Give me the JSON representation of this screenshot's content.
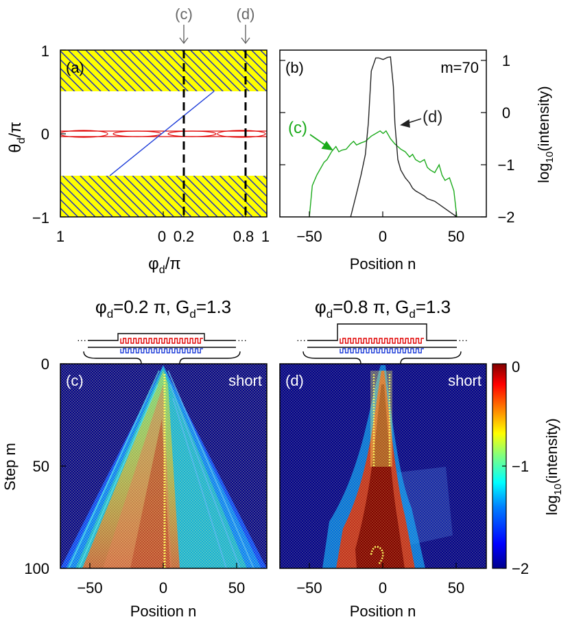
{
  "colors": {
    "yellow": "#ffff00",
    "hatch": "#2030c0",
    "red": "#e00000",
    "blue": "#1a3ad8",
    "green": "#1aaa1a",
    "dark": "#222222",
    "gray_text": "#666666",
    "navy": "#00008c"
  },
  "panel_a": {
    "label": "(a)",
    "ylabel": "θ",
    "ylabel_sub": "d",
    "ylabel_tail": "/π",
    "xlabel": "φ",
    "xlabel_sub": "d",
    "xlabel_tail": "/π",
    "yticks": [
      "1",
      "0",
      "−1"
    ],
    "xticks": [
      "1",
      "0",
      "0.2",
      "0.8",
      "1"
    ],
    "markers": [
      "(c)",
      "(d)"
    ],
    "marker_x": [
      0.2,
      0.8
    ]
  },
  "panel_b": {
    "label": "(b)",
    "step_label": "m=70",
    "xlabel": "Position n",
    "ylabel": "log",
    "ylabel_sub": "10",
    "ylabel_tail": "(intensity)",
    "xticks": [
      "−50",
      "0",
      "50"
    ],
    "yticks": [
      "1",
      "0",
      "−1",
      "−2"
    ],
    "curve_labels": [
      "(c)",
      "(d)"
    ]
  },
  "panel_c": {
    "label": "(c)",
    "tag": "short",
    "title_pre": "φ",
    "title_sub": "d",
    "title_mid": "=0.2 π, G",
    "title_sub2": "d",
    "title_post": "=1.3"
  },
  "panel_d": {
    "label": "(d)",
    "tag": "short",
    "title_pre": "φ",
    "title_sub": "d",
    "title_mid": "=0.8 π, G",
    "title_sub2": "d",
    "title_post": "=1.3"
  },
  "bottom_axes": {
    "ylabel": "Step m",
    "xlabel": "Position n",
    "yticks": [
      "0",
      "50",
      "100"
    ],
    "xticks": [
      "−50",
      "0",
      "50"
    ]
  },
  "colorbar": {
    "ticks": [
      "0",
      "−1",
      "−2"
    ],
    "label": "log",
    "label_sub": "10",
    "label_tail": "(intensity)"
  },
  "chart_data": [
    {
      "type": "line",
      "panel": "(b)",
      "xlim": [
        -70,
        70
      ],
      "ylim": [
        -2,
        1.2
      ],
      "series": [
        {
          "name": "(c)",
          "color": "#1aaa1a",
          "x": [
            -50,
            -48,
            -45,
            -42,
            -40,
            -38,
            -35,
            -32,
            -30,
            -28,
            -25,
            -22,
            -20,
            -18,
            -15,
            -12,
            -10,
            -8,
            -5,
            -2,
            0,
            2,
            5,
            8,
            10,
            12,
            15,
            18,
            20,
            22,
            25,
            28,
            30,
            32,
            35,
            38,
            40,
            42,
            45,
            48,
            50
          ],
          "y": [
            -2,
            -1.4,
            -1.2,
            -1.05,
            -0.95,
            -0.9,
            -0.75,
            -0.65,
            -0.75,
            -0.72,
            -0.7,
            -0.6,
            -0.55,
            -0.62,
            -0.58,
            -0.55,
            -0.5,
            -0.45,
            -0.4,
            -0.35,
            -0.4,
            -0.35,
            -0.5,
            -0.6,
            -0.65,
            -0.7,
            -0.75,
            -0.85,
            -0.8,
            -0.9,
            -0.95,
            -0.9,
            -1.05,
            -1.1,
            -1.15,
            -1.0,
            -1.2,
            -1.3,
            -1.25,
            -1.5,
            -2
          ]
        },
        {
          "name": "(d)",
          "color": "#222222",
          "x": [
            -22,
            -18,
            -15,
            -12,
            -10,
            -8,
            -5,
            -3,
            0,
            3,
            5,
            7,
            8,
            10,
            12,
            15,
            18,
            20,
            22,
            25,
            28,
            30,
            35,
            40,
            45,
            50
          ],
          "y": [
            -2,
            -1.55,
            -1.2,
            -0.8,
            -0.2,
            0.8,
            1.05,
            1.05,
            1.02,
            1.06,
            1.07,
            0.5,
            -0.2,
            -0.9,
            -1.1,
            -1.25,
            -1.35,
            -1.45,
            -1.5,
            -1.55,
            -1.6,
            -1.65,
            -1.7,
            -1.8,
            -1.9,
            -2
          ]
        }
      ]
    },
    {
      "type": "heatmap",
      "panel": "(c)",
      "xlim": [
        -70,
        70
      ],
      "ylim": [
        0,
        100
      ],
      "clim": [
        -2,
        0
      ]
    },
    {
      "type": "heatmap",
      "panel": "(d)",
      "xlim": [
        -70,
        70
      ],
      "ylim": [
        0,
        100
      ],
      "clim": [
        -2,
        0
      ]
    }
  ]
}
